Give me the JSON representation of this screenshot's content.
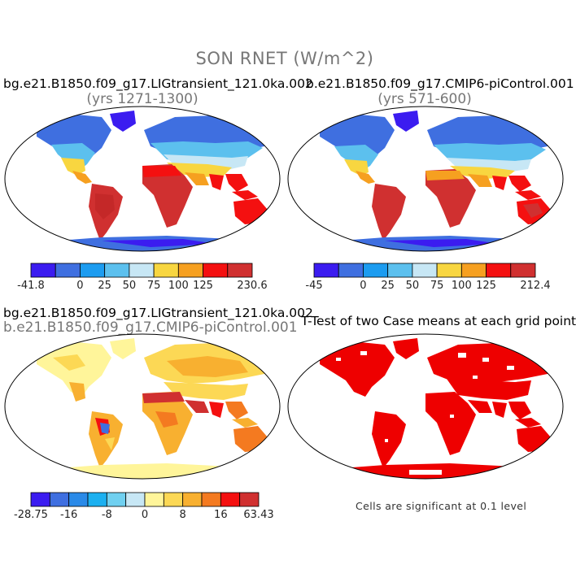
{
  "figure": {
    "title": "SON RNET (W/m^2)"
  },
  "panels": [
    {
      "case_name": "bg.e21.B1850.f09_g17.LIGtransient_121.0ka.002",
      "subtitle": "(yrs 1271-1300)",
      "colorbar": {
        "labels": [
          "-41.8",
          "0",
          "25",
          "50",
          "75",
          "100",
          "125",
          "230.6"
        ],
        "colors": [
          "#3b1cf0",
          "#3f6fe0",
          "#1c9cf0",
          "#5cc0ee",
          "#c7e7f5",
          "#f8d640",
          "#f6a020",
          "#f41010",
          "#d03030"
        ]
      }
    },
    {
      "case_name": "b.e21.B1850.f09_g17.CMIP6-piControl.001",
      "subtitle": "(yrs 571-600)",
      "colorbar": {
        "labels": [
          "-45",
          "0",
          "25",
          "50",
          "75",
          "100",
          "125",
          "212.4"
        ],
        "colors": [
          "#3b1cf0",
          "#3f6fe0",
          "#1c9cf0",
          "#5cc0ee",
          "#c7e7f5",
          "#f8d640",
          "#f6a020",
          "#f41010",
          "#d03030"
        ]
      }
    },
    {
      "case_name": "bg.e21.B1850.f09_g17.LIGtransient_121.0ka.002",
      "subtitle": "b.e21.B1850.f09_g17.CMIP6-piControl.001",
      "colorbar": {
        "labels": [
          "-28.75",
          "-16",
          "-8",
          "0",
          "8",
          "16",
          "63.43"
        ],
        "colors": [
          "#3b1cf0",
          "#3f6fe0",
          "#2a8ae8",
          "#1cb0f0",
          "#70d0f0",
          "#c7e7f5",
          "#fff59a",
          "#fcd855",
          "#f8b030",
          "#f47a20",
          "#f41010",
          "#d03030"
        ]
      }
    },
    {
      "case_name": "T-Test of two Case means at each grid point",
      "note": "Cells are significant at 0.1 level"
    }
  ]
}
